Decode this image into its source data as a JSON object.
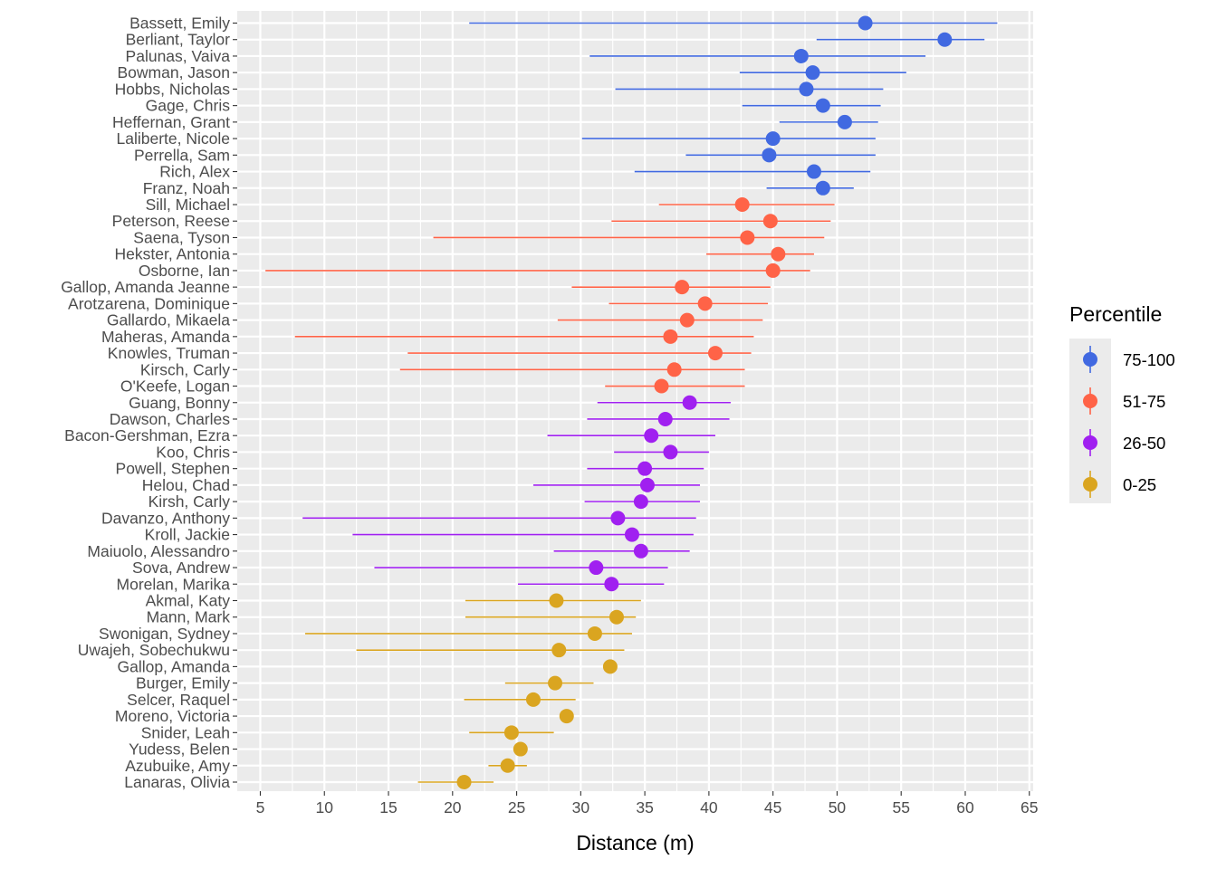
{
  "chart_data": {
    "type": "scatter",
    "subtype": "point-range",
    "title": "",
    "xlabel": "Distance (m)",
    "ylabel": "",
    "xlim": [
      3.2,
      65.3
    ],
    "xticks": [
      5,
      10,
      15,
      20,
      25,
      30,
      35,
      40,
      45,
      50,
      55,
      60,
      65
    ],
    "grid": true,
    "legend": {
      "title": "Percentile",
      "position": "right",
      "entries": [
        {
          "label": "75-100",
          "color": "#4169E1"
        },
        {
          "label": "51-75",
          "color": "#FF6347"
        },
        {
          "label": "26-50",
          "color": "#A020F0"
        },
        {
          "label": "0-25",
          "color": "#DAA520"
        }
      ]
    },
    "colors": {
      "75-100": "#4169E1",
      "51-75": "#FF6347",
      "26-50": "#A020F0",
      "0-25": "#DAA520"
    },
    "points": [
      {
        "name": "Bassett, Emily",
        "group": "75-100",
        "value": 52.2,
        "low": 21.3,
        "high": 62.5
      },
      {
        "name": "Berliant, Taylor",
        "group": "75-100",
        "value": 58.4,
        "low": 48.4,
        "high": 61.5
      },
      {
        "name": "Palunas, Vaiva",
        "group": "75-100",
        "value": 47.2,
        "low": 30.7,
        "high": 56.9
      },
      {
        "name": "Bowman, Jason",
        "group": "75-100",
        "value": 48.1,
        "low": 42.4,
        "high": 55.4
      },
      {
        "name": "Hobbs, Nicholas",
        "group": "75-100",
        "value": 47.6,
        "low": 32.7,
        "high": 53.6
      },
      {
        "name": "Gage, Chris",
        "group": "75-100",
        "value": 48.9,
        "low": 42.6,
        "high": 53.4
      },
      {
        "name": "Heffernan, Grant",
        "group": "75-100",
        "value": 50.6,
        "low": 45.5,
        "high": 53.2
      },
      {
        "name": "Laliberte, Nicole",
        "group": "75-100",
        "value": 45.0,
        "low": 30.1,
        "high": 53.0
      },
      {
        "name": "Perrella, Sam",
        "group": "75-100",
        "value": 44.7,
        "low": 38.2,
        "high": 53.0
      },
      {
        "name": "Rich, Alex",
        "group": "75-100",
        "value": 48.2,
        "low": 34.2,
        "high": 52.6
      },
      {
        "name": "Franz, Noah",
        "group": "75-100",
        "value": 48.9,
        "low": 44.5,
        "high": 51.3
      },
      {
        "name": "Sill, Michael",
        "group": "51-75",
        "value": 42.6,
        "low": 36.1,
        "high": 49.8
      },
      {
        "name": "Peterson, Reese",
        "group": "51-75",
        "value": 44.8,
        "low": 32.4,
        "high": 49.5
      },
      {
        "name": "Saena, Tyson",
        "group": "51-75",
        "value": 43.0,
        "low": 18.5,
        "high": 49.0
      },
      {
        "name": "Hekster, Antonia",
        "group": "51-75",
        "value": 45.4,
        "low": 39.8,
        "high": 48.2
      },
      {
        "name": "Osborne, Ian",
        "group": "51-75",
        "value": 45.0,
        "low": 5.4,
        "high": 47.9
      },
      {
        "name": "Gallop, Amanda Jeanne",
        "group": "51-75",
        "value": 37.9,
        "low": 29.3,
        "high": 44.8
      },
      {
        "name": "Arotzarena, Dominique",
        "group": "51-75",
        "value": 39.7,
        "low": 32.2,
        "high": 44.6
      },
      {
        "name": "Gallardo, Mikaela",
        "group": "51-75",
        "value": 38.3,
        "low": 28.2,
        "high": 44.2
      },
      {
        "name": "Maheras, Amanda",
        "group": "51-75",
        "value": 37.0,
        "low": 7.7,
        "high": 43.5
      },
      {
        "name": "Knowles, Truman",
        "group": "51-75",
        "value": 40.5,
        "low": 16.5,
        "high": 43.3
      },
      {
        "name": "Kirsch, Carly",
        "group": "51-75",
        "value": 37.3,
        "low": 15.9,
        "high": 42.8
      },
      {
        "name": "O'Keefe, Logan",
        "group": "51-75",
        "value": 36.3,
        "low": 31.9,
        "high": 42.8
      },
      {
        "name": "Guang, Bonny",
        "group": "26-50",
        "value": 38.5,
        "low": 31.3,
        "high": 41.7
      },
      {
        "name": "Dawson, Charles",
        "group": "26-50",
        "value": 36.6,
        "low": 30.5,
        "high": 41.6
      },
      {
        "name": "Bacon-Gershman, Ezra",
        "group": "26-50",
        "value": 35.5,
        "low": 27.4,
        "high": 40.5
      },
      {
        "name": "Koo, Chris",
        "group": "26-50",
        "value": 37.0,
        "low": 32.6,
        "high": 40.0
      },
      {
        "name": "Powell, Stephen",
        "group": "26-50",
        "value": 35.0,
        "low": 30.5,
        "high": 39.6
      },
      {
        "name": "Helou, Chad",
        "group": "26-50",
        "value": 35.2,
        "low": 26.3,
        "high": 39.3
      },
      {
        "name": "Kirsh, Carly",
        "group": "26-50",
        "value": 34.7,
        "low": 30.3,
        "high": 39.3
      },
      {
        "name": "Davanzo, Anthony",
        "group": "26-50",
        "value": 32.9,
        "low": 8.3,
        "high": 39.0
      },
      {
        "name": "Kroll, Jackie",
        "group": "26-50",
        "value": 34.0,
        "low": 12.2,
        "high": 38.8
      },
      {
        "name": "Maiuolo, Alessandro",
        "group": "26-50",
        "value": 34.7,
        "low": 27.9,
        "high": 38.5
      },
      {
        "name": "Sova, Andrew",
        "group": "26-50",
        "value": 31.2,
        "low": 13.9,
        "high": 36.8
      },
      {
        "name": "Morelan, Marika",
        "group": "26-50",
        "value": 32.4,
        "low": 25.1,
        "high": 36.5
      },
      {
        "name": "Akmal, Katy",
        "group": "0-25",
        "value": 28.1,
        "low": 21.0,
        "high": 34.7
      },
      {
        "name": "Mann, Mark",
        "group": "0-25",
        "value": 32.8,
        "low": 21.0,
        "high": 34.3
      },
      {
        "name": "Swonigan, Sydney",
        "group": "0-25",
        "value": 31.1,
        "low": 8.5,
        "high": 34.0
      },
      {
        "name": "Uwajeh, Sobechukwu",
        "group": "0-25",
        "value": 28.3,
        "low": 12.5,
        "high": 33.4
      },
      {
        "name": "Gallop, Amanda",
        "group": "0-25",
        "value": 32.3,
        "low": 32.3,
        "high": 32.3
      },
      {
        "name": "Burger, Emily",
        "group": "0-25",
        "value": 28.0,
        "low": 24.1,
        "high": 31.0
      },
      {
        "name": "Selcer, Raquel",
        "group": "0-25",
        "value": 26.3,
        "low": 20.9,
        "high": 29.6
      },
      {
        "name": "Moreno, Victoria",
        "group": "0-25",
        "value": 28.9,
        "low": 28.9,
        "high": 28.9
      },
      {
        "name": "Snider, Leah",
        "group": "0-25",
        "value": 24.6,
        "low": 21.3,
        "high": 27.9
      },
      {
        "name": "Yudess, Belen",
        "group": "0-25",
        "value": 25.3,
        "low": 25.3,
        "high": 25.3
      },
      {
        "name": "Azubuike, Amy",
        "group": "0-25",
        "value": 24.3,
        "low": 22.8,
        "high": 25.8
      },
      {
        "name": "Lanaras, Olivia",
        "group": "0-25",
        "value": 20.9,
        "low": 17.3,
        "high": 23.2
      }
    ]
  }
}
